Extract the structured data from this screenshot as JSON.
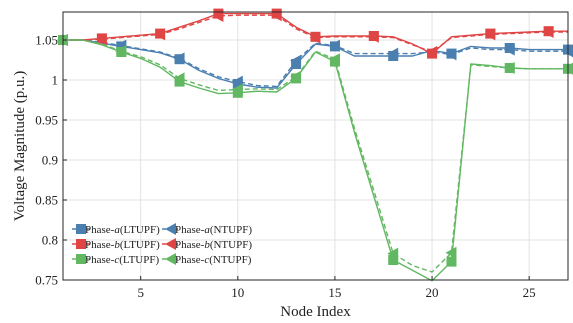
{
  "chart_data": {
    "type": "line",
    "xlabel": "Node Index",
    "ylabel": "Voltage Magnitude (p.u.)",
    "xlim": [
      1,
      27
    ],
    "ylim": [
      0.75,
      1.085
    ],
    "x_ticks": [
      5,
      10,
      15,
      20,
      25
    ],
    "y_ticks": [
      0.75,
      0.8,
      0.85,
      0.9,
      0.95,
      1,
      1.05
    ],
    "y_tick_labels": [
      "0.75",
      "0.8",
      "0.85",
      "0.9",
      "0.95",
      "1",
      "1.05"
    ],
    "grid": true,
    "legend_position": "bottom-left",
    "x": [
      1,
      2,
      3,
      4,
      5,
      6,
      7,
      8,
      9,
      10,
      11,
      12,
      13,
      14,
      15,
      16,
      17,
      18,
      19,
      20,
      21,
      22,
      23,
      24,
      25,
      26,
      27
    ],
    "series": [
      {
        "name": "Phase-a(LTUPF)",
        "legend_prefix": "Phase-",
        "legend_italic": "a",
        "legend_suffix": "(LTUPF)",
        "color": "#4a7fb0",
        "marker": "square",
        "dashed": false,
        "marker_nodes": [
          1,
          4,
          7,
          10,
          13,
          15,
          18,
          21,
          24,
          27
        ],
        "values": [
          1.05,
          1.05,
          1.046,
          1.042,
          1.038,
          1.034,
          1.026,
          1.012,
          1.002,
          0.995,
          0.991,
          0.99,
          1.02,
          1.045,
          1.042,
          1.03,
          1.03,
          1.03,
          1.03,
          1.037,
          1.033,
          1.042,
          1.04,
          1.04,
          1.038,
          1.038,
          1.038
        ]
      },
      {
        "name": "Phase-a(NTUPF)",
        "legend_prefix": "Phase-",
        "legend_italic": "a",
        "legend_suffix": "(NTUPF)",
        "color": "#4a7fb0",
        "marker": "triangle-left",
        "dashed": true,
        "marker_nodes": [
          1,
          4,
          7,
          10,
          13,
          15,
          18,
          21,
          24,
          27
        ],
        "values": [
          1.05,
          1.05,
          1.047,
          1.043,
          1.039,
          1.035,
          1.027,
          1.014,
          1.004,
          0.998,
          0.993,
          0.992,
          1.024,
          1.046,
          1.043,
          1.033,
          1.033,
          1.033,
          1.033,
          1.035,
          1.032,
          1.04,
          1.038,
          1.038,
          1.036,
          1.036,
          1.036
        ]
      },
      {
        "name": "Phase-b(LTUPF)",
        "legend_prefix": "Phase-",
        "legend_italic": "b",
        "legend_suffix": "(LTUPF)",
        "color": "#e04545",
        "marker": "square",
        "dashed": false,
        "marker_nodes": [
          1,
          3,
          6,
          9,
          12,
          14,
          17,
          20,
          23,
          26
        ],
        "values": [
          1.05,
          1.05,
          1.052,
          1.054,
          1.056,
          1.058,
          1.066,
          1.074,
          1.083,
          1.083,
          1.083,
          1.083,
          1.066,
          1.054,
          1.055,
          1.055,
          1.055,
          1.054,
          1.045,
          1.033,
          1.054,
          1.056,
          1.058,
          1.059,
          1.06,
          1.061,
          1.061
        ]
      },
      {
        "name": "Phase-b(NTUPF)",
        "legend_prefix": "Phase-",
        "legend_italic": "b",
        "legend_suffix": "(NTUPF)",
        "color": "#e04545",
        "marker": "triangle-left",
        "dashed": true,
        "marker_nodes": [
          1,
          3,
          6,
          9,
          12,
          14,
          17,
          20,
          23,
          26
        ],
        "values": [
          1.05,
          1.05,
          1.051,
          1.053,
          1.055,
          1.057,
          1.064,
          1.072,
          1.08,
          1.081,
          1.081,
          1.081,
          1.064,
          1.053,
          1.054,
          1.054,
          1.054,
          1.053,
          1.044,
          1.035,
          1.053,
          1.055,
          1.057,
          1.058,
          1.059,
          1.06,
          1.06
        ]
      },
      {
        "name": "Phase-c(LTUPF)",
        "legend_prefix": "Phase-",
        "legend_italic": "c",
        "legend_suffix": "(LTUPF)",
        "color": "#62b862",
        "marker": "square",
        "dashed": false,
        "marker_nodes": [
          1,
          4,
          7,
          10,
          13,
          15,
          18,
          21,
          24,
          27
        ],
        "values": [
          1.05,
          1.05,
          1.044,
          1.035,
          1.027,
          1.016,
          0.998,
          0.99,
          0.983,
          0.984,
          0.986,
          0.985,
          1.002,
          1.035,
          1.023,
          0.935,
          0.855,
          0.775,
          0.762,
          0.749,
          0.773,
          1.02,
          1.018,
          1.015,
          1.014,
          1.014,
          1.014
        ]
      },
      {
        "name": "Phase-c(NTUPF)",
        "legend_prefix": "Phase-",
        "legend_italic": "c",
        "legend_suffix": "(NTUPF)",
        "color": "#62b862",
        "marker": "triangle-left",
        "dashed": true,
        "marker_nodes": [
          1,
          4,
          7,
          10,
          13,
          15,
          18,
          21,
          24,
          27
        ],
        "values": [
          1.05,
          1.05,
          1.045,
          1.036,
          1.029,
          1.019,
          1.002,
          0.994,
          0.987,
          0.988,
          0.989,
          0.988,
          1.004,
          1.036,
          1.026,
          0.94,
          0.862,
          0.783,
          0.768,
          0.76,
          0.784,
          1.019,
          1.017,
          1.015,
          1.014,
          1.014,
          1.014
        ]
      }
    ]
  }
}
